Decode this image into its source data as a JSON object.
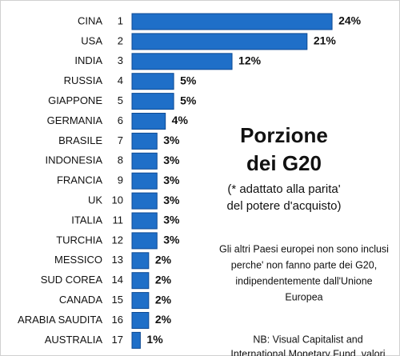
{
  "chart_data": {
    "type": "bar",
    "orientation": "horizontal",
    "title": [
      "Porzione",
      "dei G20"
    ],
    "subtitle": [
      "(* adattato alla parita'",
      "del potere d'acquisto)"
    ],
    "annotations": [
      "Gli altri Paesi europei non sono inclusi",
      "perche' non fanno parte dei G20,",
      "indipendentemente dall'Unione",
      "Europea"
    ],
    "source": [
      "NB: Visual Capitalist and",
      "International Monetary Fund, valori"
    ],
    "categories": [
      "CINA",
      "USA",
      "INDIA",
      "RUSSIA",
      "GIAPPONE",
      "GERMANIA",
      "BRASILE",
      "INDONESIA",
      "FRANCIA",
      "UK",
      "ITALIA",
      "TURCHIA",
      "MESSICO",
      "SUD COREA",
      "CANADA",
      "ARABIA SAUDITA",
      "AUSTRALIA"
    ],
    "ranks": [
      "1",
      "2",
      "3",
      "4",
      "5",
      "6",
      "7",
      "8",
      "9",
      "10",
      "11",
      "12",
      "13",
      "14",
      "15",
      "16",
      "17"
    ],
    "values": [
      24,
      21,
      12,
      5,
      5,
      4,
      3,
      3,
      3,
      3,
      3,
      3,
      2,
      2,
      2,
      2,
      1
    ],
    "value_labels": [
      "24%",
      "21%",
      "12%",
      "5%",
      "5%",
      "4%",
      "3%",
      "3%",
      "3%",
      "3%",
      "3%",
      "3%",
      "2%",
      "2%",
      "2%",
      "2%",
      "1%"
    ],
    "color": "#1f6fc8"
  }
}
